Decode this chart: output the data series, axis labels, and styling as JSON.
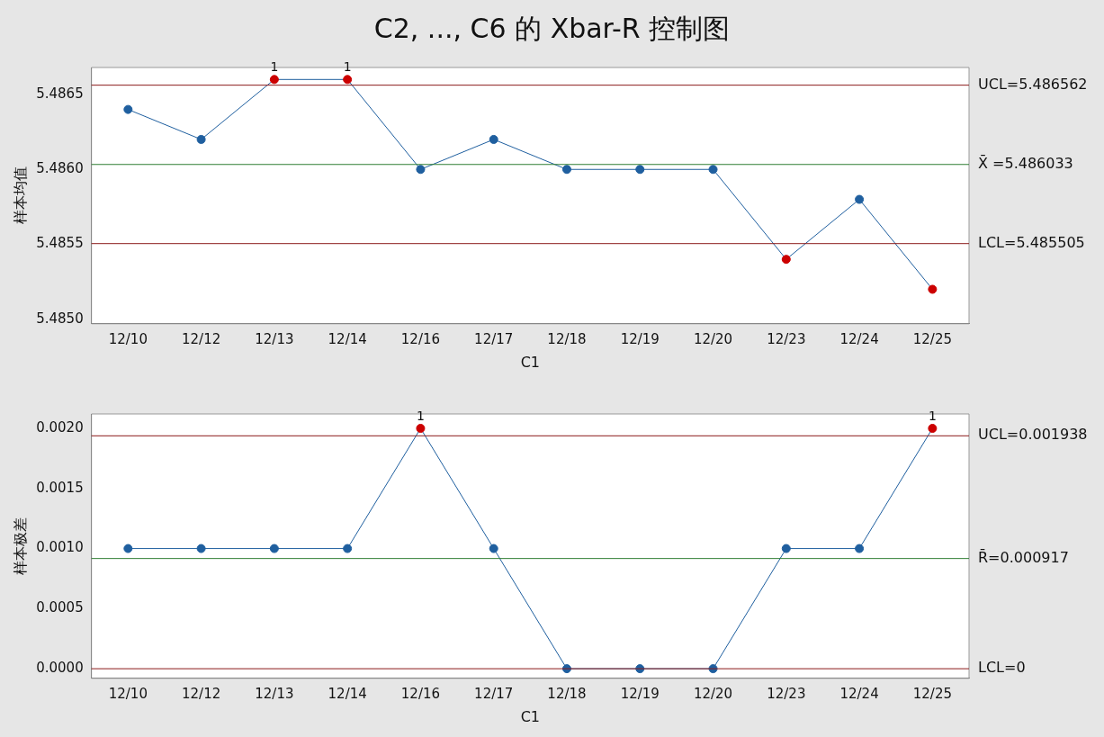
{
  "chart_data": [
    {
      "type": "line",
      "title": "C2, ..., C6 的 Xbar-R 控制图",
      "xlabel": "C1",
      "ylabel": "样本均值",
      "categories": [
        "12/10",
        "12/12",
        "12/13",
        "12/14",
        "12/16",
        "12/17",
        "12/18",
        "12/19",
        "12/20",
        "12/23",
        "12/24",
        "12/25"
      ],
      "series": [
        {
          "color": "#1f5f9f",
          "values": [
            5.4864,
            5.4862,
            5.4866,
            5.4866,
            5.486,
            5.4862,
            5.486,
            5.486,
            5.486,
            5.4854,
            5.4858,
            5.4852
          ],
          "colors": [
            "#1f5f9f",
            "#1f5f9f",
            "#cc0000",
            "#cc0000",
            "#1f5f9f",
            "#1f5f9f",
            "#1f5f9f",
            "#1f5f9f",
            "#1f5f9f",
            "#cc0000",
            "#1f5f9f",
            "#cc0000"
          ]
        }
      ],
      "ylim": [
        5.48497,
        5.48668
      ],
      "yticks": [
        {
          "value": 5.485,
          "label": "5.4850"
        },
        {
          "value": 5.4855,
          "label": "5.4855"
        },
        {
          "value": 5.486,
          "label": "5.4860"
        },
        {
          "value": 5.4865,
          "label": "5.4865"
        }
      ],
      "ref_lines": [
        {
          "axis": "y",
          "value": 5.486562,
          "label": "UCL=5.486562",
          "color": "#8b1a1a"
        },
        {
          "axis": "y",
          "value": 5.486033,
          "label": "X̄ =5.486033",
          "color": "#2e7d32"
        },
        {
          "axis": "y",
          "value": 5.485505,
          "label": "LCL=5.485505",
          "color": "#8b1a1a"
        }
      ],
      "annotations": [
        {
          "text": "1",
          "x": "12/13",
          "y": 5.4866
        },
        {
          "text": "1",
          "x": "12/14",
          "y": 5.4866
        }
      ],
      "grid": false,
      "legend": false,
      "marker": "circle",
      "line_style": "solid"
    },
    {
      "type": "line",
      "xlabel": "C1",
      "ylabel": "样本极差",
      "categories": [
        "12/10",
        "12/12",
        "12/13",
        "12/14",
        "12/16",
        "12/17",
        "12/18",
        "12/19",
        "12/20",
        "12/23",
        "12/24",
        "12/25"
      ],
      "series": [
        {
          "color": "#1f5f9f",
          "values": [
            0.001,
            0.001,
            0.001,
            0.001,
            0.002,
            0.001,
            0,
            0,
            0,
            0.001,
            0.001,
            0.002
          ],
          "colors": [
            "#1f5f9f",
            "#1f5f9f",
            "#1f5f9f",
            "#1f5f9f",
            "#cc0000",
            "#1f5f9f",
            "#1f5f9f",
            "#1f5f9f",
            "#1f5f9f",
            "#1f5f9f",
            "#1f5f9f",
            "#cc0000"
          ]
        }
      ],
      "ylim": [
        -8e-05,
        0.00212
      ],
      "yticks": [
        {
          "value": 0,
          "label": "0.0000"
        },
        {
          "value": 0.0005,
          "label": "0.0005"
        },
        {
          "value": 0.001,
          "label": "0.0010"
        },
        {
          "value": 0.0015,
          "label": "0.0015"
        },
        {
          "value": 0.002,
          "label": "0.0020"
        }
      ],
      "ref_lines": [
        {
          "axis": "y",
          "value": 0.001938,
          "label": "UCL=0.001938",
          "color": "#8b1a1a"
        },
        {
          "axis": "y",
          "value": 0.000917,
          "label": "R̄=0.000917",
          "color": "#2e7d32"
        },
        {
          "axis": "y",
          "value": 0,
          "label": "LCL=0",
          "color": "#8b1a1a"
        }
      ],
      "annotations": [
        {
          "text": "1",
          "x": "12/16",
          "y": 0.002
        },
        {
          "text": "1",
          "x": "12/25",
          "y": 0.002
        }
      ],
      "grid": false,
      "legend": false,
      "marker": "circle",
      "line_style": "solid"
    }
  ]
}
